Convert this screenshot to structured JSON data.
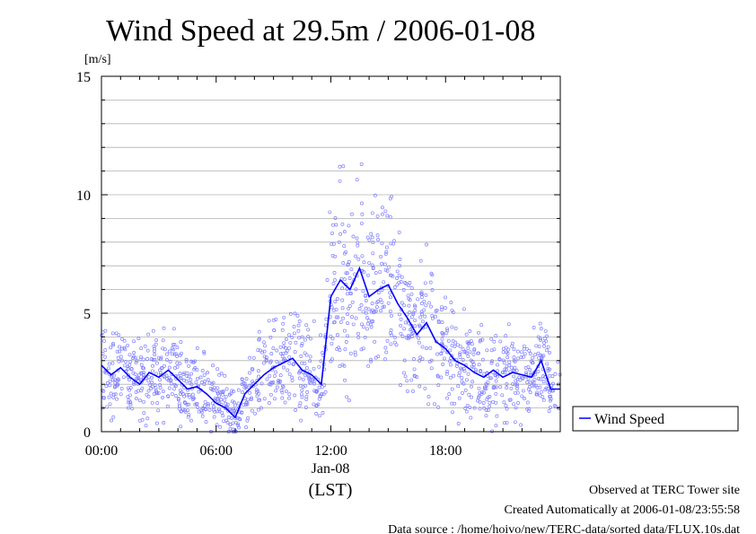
{
  "chart_data": {
    "type": "line",
    "title": "Wind Speed at 29.5m / 2006-01-08",
    "ylabel": "[m/s]",
    "xlabel": "(LST)",
    "date_label": "Jan-08",
    "ylim": [
      0,
      15
    ],
    "y_ticks": [
      0,
      5,
      10,
      15
    ],
    "x_ticks": [
      "00:00",
      "06:00",
      "12:00",
      "18:00"
    ],
    "xlim_hours": [
      0,
      24
    ],
    "grid": true,
    "legend": {
      "label": "Wind Speed",
      "placement": "right-bottom-outside"
    },
    "colors": {
      "line": "#0000ff",
      "points": "#7f7fff"
    },
    "series": [
      {
        "name": "Wind Speed",
        "x": [
          0,
          0.5,
          1,
          1.5,
          2,
          2.5,
          3,
          3.5,
          4,
          4.5,
          5,
          5.5,
          6,
          6.5,
          7,
          7.5,
          8,
          8.5,
          9,
          9.5,
          10,
          10.5,
          11,
          11.5,
          12,
          12.5,
          13,
          13.5,
          14,
          14.5,
          15,
          15.5,
          16,
          16.5,
          17,
          17.5,
          18,
          18.5,
          19,
          19.5,
          20,
          20.5,
          21,
          21.5,
          22,
          22.5,
          23,
          23.5,
          24
        ],
        "values": [
          2.8,
          2.4,
          2.7,
          2.3,
          2.0,
          2.5,
          2.3,
          2.6,
          2.2,
          1.8,
          1.9,
          1.6,
          1.2,
          1.0,
          0.6,
          1.6,
          2.0,
          2.4,
          2.7,
          2.9,
          3.1,
          2.6,
          2.4,
          2.0,
          5.7,
          6.4,
          6.0,
          6.9,
          5.7,
          6.0,
          6.2,
          5.4,
          4.8,
          4.1,
          4.6,
          3.8,
          3.5,
          3.0,
          2.8,
          2.5,
          2.3,
          2.6,
          2.3,
          2.5,
          2.4,
          2.3,
          3.0,
          1.8,
          1.8
        ]
      }
    ],
    "scatter_note_points": "raw 10-second samples scattered around the line"
  },
  "footer": {
    "line1": "Observed at TERC Tower site",
    "line2": "Created Automatically at 2006-01-08/23:55:58",
    "line3": "Data source : /home/hoivo/new/TERC-data/sorted  data/FLUX.10s.dat"
  }
}
